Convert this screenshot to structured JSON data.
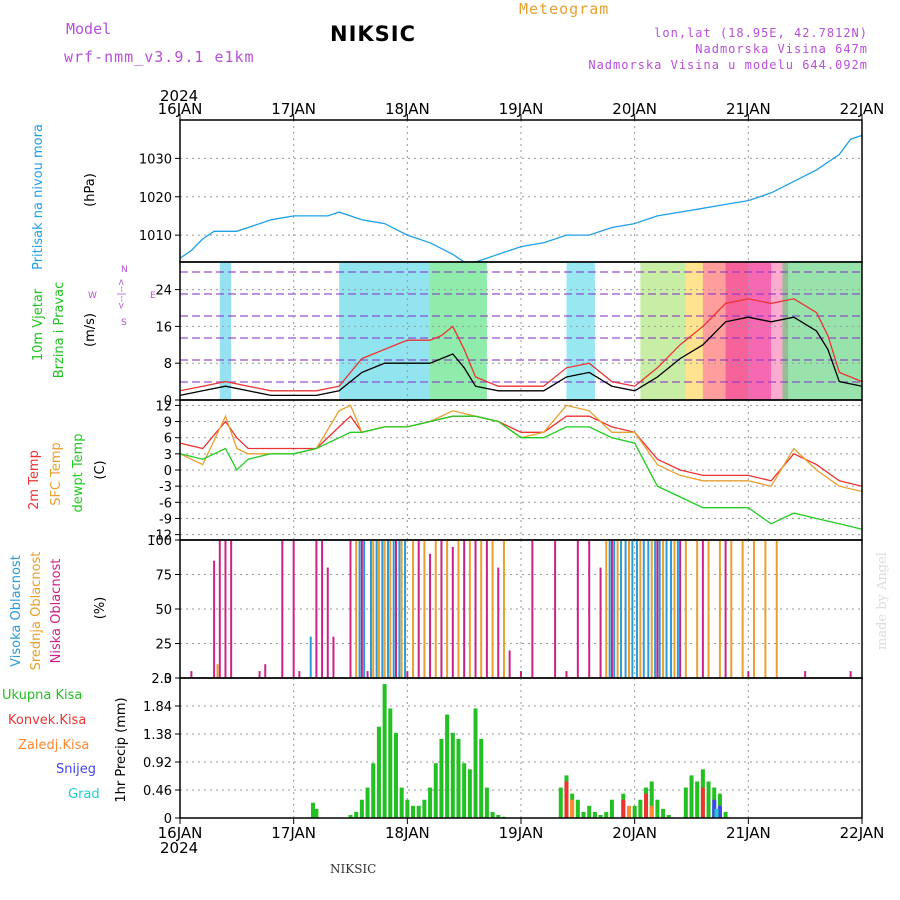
{
  "header": {
    "model_label": "Model",
    "model_name": "wrf-nmm_v3.9.1  e1km",
    "title": "NIKSIC",
    "meteogram_label": "Meteogram",
    "lonlat": "lon,lat (18.95E, 42.7812N)",
    "altitude": "Nadmorska Visina 647m",
    "model_altitude": "Nadmorska Visina u modelu 644.092m",
    "year_top": "2024",
    "year_bottom": "2024",
    "credit": "made by Angel",
    "station_footer": "NIKSIC"
  },
  "colors": {
    "pressure": "#1fa0e8",
    "wind_label": "#22c022",
    "temp2m": "#ee3333",
    "sfc_temp": "#e8a030",
    "dewpt": "#22cc22",
    "cloud_high": "#2a9bd8",
    "cloud_mid": "#e8a030",
    "cloud_low": "#cc2288",
    "precip_total": "#22c022",
    "precip_conv": "#ee3333",
    "precip_strat": "#ff8833",
    "snow": "#4444ee",
    "hail": "#22cccc",
    "compass": "#b84fd9"
  },
  "chart_data": [
    {
      "type": "line",
      "name": "pressure",
      "ylabel": "Pritisak na nivou mora",
      "unit": "(hPa)",
      "ylim": [
        1003,
        1040
      ],
      "yticks": [
        1010,
        1020,
        1030
      ],
      "xlim": [
        0,
        6
      ],
      "x_ticks": [
        "16JAN",
        "17JAN",
        "18JAN",
        "19JAN",
        "20JAN",
        "21JAN",
        "22JAN"
      ],
      "grid": true,
      "series": [
        {
          "color": "#1fa0e8",
          "x": [
            0,
            0.1,
            0.2,
            0.3,
            0.4,
            0.5,
            0.6,
            0.8,
            1.0,
            1.1,
            1.2,
            1.3,
            1.4,
            1.5,
            1.6,
            1.8,
            2.0,
            2.2,
            2.4,
            2.5,
            2.6,
            2.7,
            2.8,
            3.0,
            3.2,
            3.4,
            3.6,
            3.8,
            4.0,
            4.2,
            4.4,
            4.6,
            4.8,
            5.0,
            5.2,
            5.4,
            5.6,
            5.8,
            5.9,
            6.0
          ],
          "y": [
            1004,
            1006,
            1009,
            1011,
            1011,
            1011,
            1012,
            1014,
            1015,
            1015,
            1015,
            1015,
            1016,
            1015,
            1014,
            1013,
            1010,
            1008,
            1005,
            1003,
            1003,
            1004,
            1005,
            1007,
            1008,
            1010,
            1010,
            1012,
            1013,
            1015,
            1016,
            1017,
            1018,
            1019,
            1021,
            1024,
            1027,
            1031,
            1035,
            1036
          ]
        }
      ]
    },
    {
      "type": "line",
      "name": "wind",
      "ylabel": "10m Vjetar",
      "ylabel2": "Brzina i Pravac",
      "unit": "(m/s)",
      "compass": {
        "n": "N",
        "e": "E",
        "w": "W",
        "s": "S",
        "arrow": "<--|-->"
      },
      "ylim": [
        0,
        30
      ],
      "yticks": [
        0,
        8,
        16,
        24
      ],
      "xlim": [
        0,
        6
      ],
      "grid": true,
      "series": [
        {
          "name": "speed",
          "color": "#000000",
          "x": [
            0,
            0.2,
            0.4,
            0.6,
            0.8,
            1.0,
            1.2,
            1.4,
            1.6,
            1.8,
            2.0,
            2.2,
            2.3,
            2.4,
            2.5,
            2.6,
            2.8,
            3.0,
            3.2,
            3.4,
            3.6,
            3.8,
            4.0,
            4.2,
            4.4,
            4.6,
            4.8,
            5.0,
            5.2,
            5.4,
            5.6,
            5.7,
            5.8,
            6.0
          ],
          "y": [
            1,
            2,
            3,
            2,
            1,
            1,
            1,
            2,
            6,
            8,
            8,
            8,
            9,
            10,
            7,
            3,
            2,
            2,
            2,
            5,
            6,
            3,
            2,
            5,
            9,
            12,
            17,
            18,
            17,
            18,
            15,
            11,
            4,
            3
          ]
        },
        {
          "name": "gust",
          "color": "#ee3333",
          "x": [
            0,
            0.2,
            0.4,
            0.6,
            0.8,
            1.0,
            1.2,
            1.4,
            1.6,
            1.8,
            2.0,
            2.2,
            2.3,
            2.4,
            2.5,
            2.6,
            2.8,
            3.0,
            3.2,
            3.4,
            3.6,
            3.8,
            4.0,
            4.2,
            4.4,
            4.6,
            4.8,
            5.0,
            5.2,
            5.4,
            5.6,
            5.7,
            5.8,
            6.0
          ],
          "y": [
            2,
            3,
            4,
            3,
            2,
            2,
            2,
            3,
            9,
            11,
            13,
            13,
            14,
            16,
            11,
            5,
            3,
            3,
            3,
            7,
            8,
            4,
            3,
            7,
            12,
            16,
            21,
            22,
            21,
            22,
            19,
            14,
            6,
            4
          ]
        }
      ]
    },
    {
      "type": "line",
      "name": "temperature",
      "ylabel": "2m Temp",
      "ylabel2": "SFC Temp",
      "ylabel3": "dewpt Temp",
      "unit": "(C)",
      "ylim": [
        -13,
        13
      ],
      "yticks": [
        -12,
        -9,
        -6,
        -3,
        0,
        3,
        6,
        9,
        12
      ],
      "xlim": [
        0,
        6
      ],
      "grid": true,
      "series": [
        {
          "name": "2m",
          "color": "#ee3333",
          "x": [
            0,
            0.2,
            0.4,
            0.5,
            0.6,
            0.8,
            1.0,
            1.2,
            1.4,
            1.5,
            1.6,
            1.8,
            2.0,
            2.2,
            2.4,
            2.6,
            2.8,
            3.0,
            3.2,
            3.4,
            3.6,
            3.8,
            4.0,
            4.2,
            4.4,
            4.6,
            4.8,
            5.0,
            5.2,
            5.4,
            5.6,
            5.8,
            6.0
          ],
          "y": [
            5,
            4,
            9,
            6,
            4,
            4,
            4,
            4,
            8,
            10,
            7,
            8,
            8,
            9,
            10,
            10,
            9,
            7,
            7,
            10,
            10,
            8,
            7,
            2,
            0,
            -1,
            -1,
            -1,
            -2,
            3,
            1,
            -2,
            -3
          ]
        },
        {
          "name": "sfc",
          "color": "#e8a030",
          "x": [
            0,
            0.2,
            0.4,
            0.5,
            0.6,
            0.8,
            1.0,
            1.2,
            1.4,
            1.5,
            1.6,
            1.8,
            2.0,
            2.2,
            2.4,
            2.6,
            2.8,
            3.0,
            3.2,
            3.4,
            3.6,
            3.8,
            4.0,
            4.2,
            4.4,
            4.6,
            4.8,
            5.0,
            5.2,
            5.4,
            5.6,
            5.8,
            6.0
          ],
          "y": [
            3,
            1,
            10,
            4,
            3,
            3,
            3,
            4,
            11,
            12,
            7,
            8,
            8,
            9,
            11,
            10,
            9,
            6,
            7,
            12,
            11,
            7,
            7,
            1,
            -1,
            -2,
            -2,
            -2,
            -3,
            4,
            0,
            -3,
            -4
          ]
        },
        {
          "name": "dewpt",
          "color": "#22cc22",
          "x": [
            0,
            0.2,
            0.4,
            0.5,
            0.6,
            0.8,
            1.0,
            1.2,
            1.4,
            1.5,
            1.6,
            1.8,
            2.0,
            2.2,
            2.4,
            2.6,
            2.8,
            3.0,
            3.2,
            3.4,
            3.6,
            3.8,
            4.0,
            4.2,
            4.4,
            4.6,
            4.8,
            5.0,
            5.2,
            5.4,
            5.6,
            5.8,
            6.0
          ],
          "y": [
            3,
            2,
            4,
            0,
            2,
            3,
            3,
            4,
            6,
            7,
            7,
            8,
            8,
            9,
            10,
            10,
            9,
            6,
            6,
            8,
            8,
            6,
            5,
            -3,
            -5,
            -7,
            -7,
            -7,
            -10,
            -8,
            -9,
            -10,
            -11
          ]
        }
      ]
    },
    {
      "type": "bar",
      "name": "cloud",
      "ylabel": "Visoka Oblacnost",
      "ylabel2": "Srednja Oblacnost",
      "ylabel3": "Niska Oblacnost",
      "unit": "(%)",
      "ylim": [
        0,
        100
      ],
      "yticks": [
        0,
        25,
        50,
        75,
        100
      ],
      "xlim": [
        0,
        6
      ],
      "grid": true,
      "series": [
        {
          "name": "low",
          "color": "#cc2288",
          "x": [
            0.1,
            0.3,
            0.35,
            0.4,
            0.45,
            0.7,
            0.75,
            0.9,
            1.0,
            1.05,
            1.2,
            1.25,
            1.3,
            1.35,
            1.5,
            1.6,
            1.65,
            1.9,
            2.0,
            2.1,
            2.2,
            2.3,
            2.4,
            2.5,
            2.6,
            2.7,
            2.8,
            2.9,
            3.0,
            3.1,
            3.3,
            3.4,
            3.5,
            3.6,
            3.7,
            3.8,
            4.2,
            4.4,
            4.6,
            4.8,
            5.0,
            5.5,
            5.9
          ],
          "y": [
            5,
            85,
            100,
            100,
            100,
            5,
            10,
            100,
            100,
            5,
            100,
            100,
            80,
            30,
            100,
            100,
            5,
            100,
            5,
            100,
            90,
            100,
            95,
            100,
            100,
            100,
            80,
            20,
            5,
            100,
            100,
            5,
            100,
            100,
            80,
            100,
            100,
            100,
            100,
            100,
            5,
            5,
            5
          ]
        },
        {
          "name": "mid",
          "color": "#e8a030",
          "x": [
            0.33,
            1.55,
            1.7,
            1.75,
            1.8,
            1.85,
            1.95,
            2.05,
            2.15,
            2.25,
            2.35,
            2.45,
            2.55,
            2.65,
            2.75,
            2.85,
            3.75,
            3.85,
            3.95,
            4.05,
            4.15,
            4.25,
            4.35,
            4.45,
            4.55,
            4.65,
            4.75,
            4.85,
            4.95,
            5.05,
            5.15,
            5.25
          ],
          "y": [
            10,
            100,
            100,
            100,
            100,
            100,
            100,
            100,
            100,
            100,
            100,
            100,
            100,
            100,
            100,
            100,
            100,
            100,
            100,
            100,
            100,
            100,
            100,
            100,
            100,
            100,
            100,
            100,
            100,
            100,
            100,
            100
          ]
        },
        {
          "name": "high",
          "color": "#2a9bd8",
          "x": [
            1.15,
            1.58,
            1.62,
            1.68,
            1.73,
            1.78,
            1.83,
            1.88,
            1.93,
            1.98,
            3.78,
            3.82,
            3.88,
            3.92,
            3.98,
            4.02,
            4.08,
            4.12,
            4.18,
            4.22,
            4.28,
            4.32,
            4.38
          ],
          "y": [
            30,
            100,
            100,
            100,
            100,
            100,
            100,
            100,
            100,
            100,
            100,
            100,
            100,
            100,
            100,
            100,
            100,
            100,
            100,
            100,
            100,
            100,
            100
          ]
        }
      ]
    },
    {
      "type": "bar",
      "name": "precip",
      "ylabel": "1hr Precip",
      "unit": "(mm)",
      "legend": [
        "Ukupna Kisa",
        "Konvek.Kisa",
        "Zaledj.Kisa",
        "Snijeg",
        "Grad"
      ],
      "ylim": [
        0,
        2.3
      ],
      "yticks": [
        0,
        0.46,
        0.92,
        1.38,
        1.84,
        2.3
      ],
      "ytick_labels": [
        "0",
        "0.46",
        "0.92",
        "1.38",
        "1.84",
        "2.3"
      ],
      "xlim": [
        0,
        6
      ],
      "x_ticks": [
        "16JAN",
        "17JAN",
        "18JAN",
        "19JAN",
        "20JAN",
        "21JAN",
        "22JAN"
      ],
      "grid": true,
      "series": [
        {
          "name": "total",
          "color": "#22c022",
          "x": [
            1.17,
            1.2,
            1.5,
            1.55,
            1.6,
            1.65,
            1.7,
            1.75,
            1.8,
            1.85,
            1.9,
            1.95,
            2.0,
            2.05,
            2.1,
            2.15,
            2.2,
            2.25,
            2.3,
            2.35,
            2.4,
            2.45,
            2.5,
            2.55,
            2.6,
            2.65,
            2.7,
            2.75,
            2.8,
            2.85,
            3.35,
            3.4,
            3.45,
            3.5,
            3.55,
            3.6,
            3.65,
            3.7,
            3.75,
            3.8,
            3.9,
            4.0,
            4.05,
            4.1,
            4.15,
            4.2,
            4.25,
            4.3,
            4.45,
            4.5,
            4.55,
            4.6,
            4.65,
            4.7,
            4.75,
            4.8
          ],
          "y": [
            0.25,
            0.15,
            0.05,
            0.1,
            0.3,
            0.5,
            0.9,
            1.5,
            2.2,
            1.8,
            1.4,
            0.5,
            0.3,
            0.2,
            0.2,
            0.3,
            0.5,
            0.9,
            1.3,
            1.7,
            1.4,
            1.3,
            0.9,
            0.8,
            1.8,
            1.3,
            0.5,
            0.1,
            0.05,
            0.02,
            0.5,
            0.7,
            0.4,
            0.3,
            0.1,
            0.2,
            0.1,
            0.05,
            0.1,
            0.3,
            0.4,
            0.2,
            0.3,
            0.5,
            0.6,
            0.3,
            0.15,
            0.05,
            0.5,
            0.7,
            0.6,
            0.8,
            0.6,
            0.5,
            0.4,
            0.1
          ]
        },
        {
          "name": "conv",
          "color": "#ee3333",
          "x": [
            3.4,
            3.9,
            4.1,
            4.6
          ],
          "y": [
            0.6,
            0.3,
            0.4,
            0.5
          ]
        },
        {
          "name": "strat",
          "color": "#ff8833",
          "x": [
            3.45,
            3.95,
            4.15
          ],
          "y": [
            0.3,
            0.2,
            0.2
          ]
        },
        {
          "name": "snow",
          "color": "#4444ee",
          "x": [
            4.7,
            4.75
          ],
          "y": [
            0.3,
            0.2
          ]
        },
        {
          "name": "hail",
          "color": "#22cccc",
          "x": [
            4.72
          ],
          "y": [
            0.15
          ]
        }
      ]
    }
  ]
}
